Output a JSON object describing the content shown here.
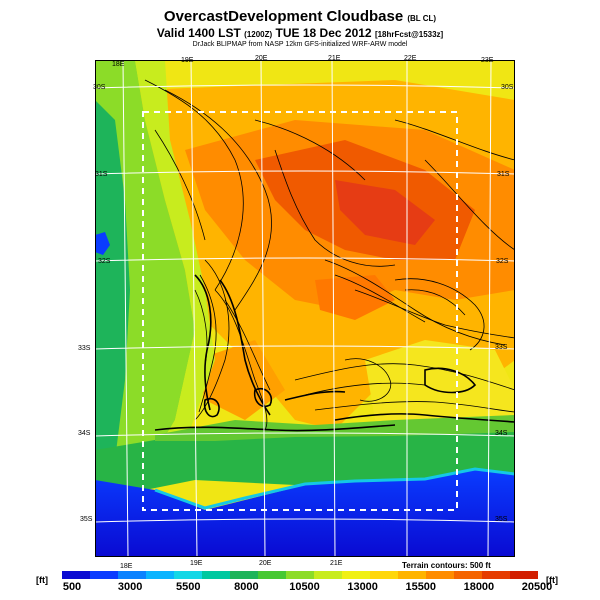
{
  "header": {
    "title": "OvercastDevelopment Cloudbase",
    "title_suffix": "(BL CL)",
    "valid_line": "Valid 1400 LST",
    "valid_code": "(1200Z)",
    "valid_date": "TUE 18 Dec 2012",
    "forecast_code": "[18hrFcst@1533z]",
    "source_line": "DrJack BLIPMAP from NASP 12km GFS-initialized WRF-ARW model"
  },
  "map": {
    "lon_labels_top": [
      "18E",
      "19E",
      "20E",
      "21E",
      "22E",
      "23E"
    ],
    "lon_labels_bottom": [
      "18E",
      "19E",
      "20E",
      "21E"
    ],
    "lat_labels_left": [
      "30S",
      "31S",
      "32S",
      "33S",
      "34S",
      "35S"
    ],
    "lat_labels_right": [
      "30S",
      "31S",
      "32S",
      "33S",
      "34S",
      "35S"
    ],
    "terrain_note": "Terrain contours: 500 ft"
  },
  "colorbar": {
    "unit_left": "[ft]",
    "unit_right": "[ft]",
    "tick_labels": [
      "500",
      "3000",
      "5500",
      "8000",
      "10500",
      "13000",
      "15500",
      "18000",
      "20500"
    ],
    "colors": [
      "#0a0ad2",
      "#0a3cff",
      "#0a82ff",
      "#0ab4ff",
      "#14d7e6",
      "#00c8a0",
      "#1eb45a",
      "#46c832",
      "#8cdc28",
      "#c8ec1e",
      "#f0f014",
      "#ffd70a",
      "#ffb400",
      "#ff8c00",
      "#f56400",
      "#e63c00",
      "#d21e00"
    ]
  }
}
